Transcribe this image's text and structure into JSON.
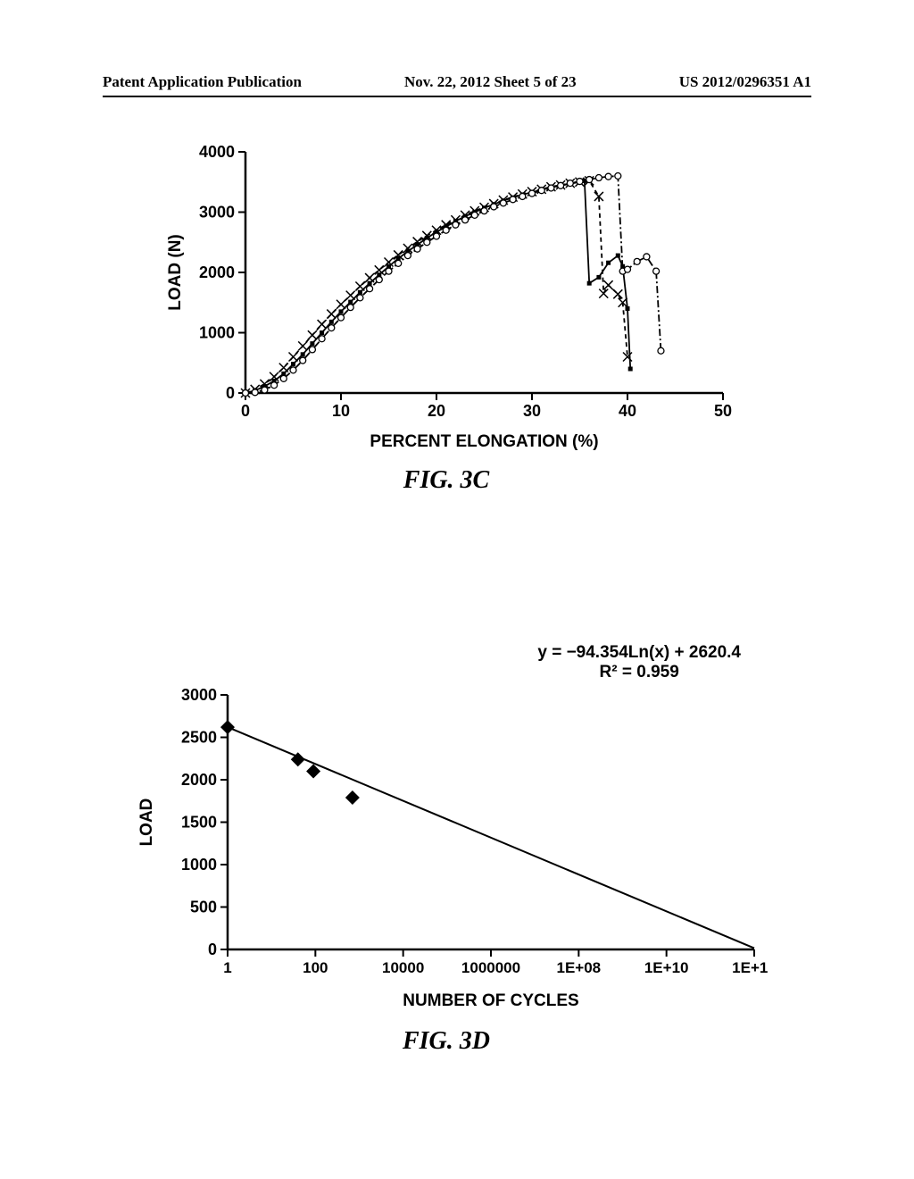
{
  "header": {
    "left": "Patent Application Publication",
    "center": "Nov. 22, 2012  Sheet 5 of 23",
    "right": "US 2012/0296351 A1"
  },
  "chart3c": {
    "type": "line",
    "title": "FIG.   3C",
    "xlabel": "PERCENT ELONGATION (%)",
    "ylabel": "LOAD (N)",
    "xlim": [
      0,
      50
    ],
    "ylim": [
      0,
      4000
    ],
    "xticks": [
      0,
      10,
      20,
      30,
      40,
      50
    ],
    "yticks": [
      0,
      1000,
      2000,
      3000,
      4000
    ],
    "background_color": "#ffffff",
    "line_color": "#000000",
    "marker_size": 5,
    "series": [
      {
        "marker": "square-filled",
        "linestyle": "solid",
        "data": [
          [
            0,
            0
          ],
          [
            1,
            40
          ],
          [
            2,
            110
          ],
          [
            3,
            200
          ],
          [
            4,
            320
          ],
          [
            5,
            480
          ],
          [
            6,
            640
          ],
          [
            7,
            820
          ],
          [
            8,
            1000
          ],
          [
            9,
            1180
          ],
          [
            10,
            1350
          ],
          [
            11,
            1510
          ],
          [
            12,
            1670
          ],
          [
            13,
            1820
          ],
          [
            14,
            1960
          ],
          [
            15,
            2100
          ],
          [
            16,
            2230
          ],
          [
            17,
            2350
          ],
          [
            18,
            2460
          ],
          [
            19,
            2570
          ],
          [
            20,
            2670
          ],
          [
            21,
            2760
          ],
          [
            22,
            2850
          ],
          [
            23,
            2930
          ],
          [
            24,
            3000
          ],
          [
            25,
            3070
          ],
          [
            26,
            3130
          ],
          [
            27,
            3190
          ],
          [
            28,
            3240
          ],
          [
            29,
            3290
          ],
          [
            30,
            3330
          ],
          [
            31,
            3370
          ],
          [
            32,
            3410
          ],
          [
            33,
            3440
          ],
          [
            34,
            3470
          ],
          [
            35,
            3500
          ],
          [
            35.5,
            3520
          ],
          [
            36,
            1820
          ],
          [
            37,
            1920
          ],
          [
            38,
            2160
          ],
          [
            39,
            2280
          ],
          [
            39.5,
            2100
          ],
          [
            40,
            1400
          ],
          [
            40.3,
            400
          ]
        ]
      },
      {
        "marker": "x",
        "linestyle": "dashed",
        "data": [
          [
            0,
            0
          ],
          [
            1,
            60
          ],
          [
            2,
            150
          ],
          [
            3,
            270
          ],
          [
            4,
            420
          ],
          [
            5,
            600
          ],
          [
            6,
            780
          ],
          [
            7,
            960
          ],
          [
            8,
            1140
          ],
          [
            9,
            1310
          ],
          [
            10,
            1470
          ],
          [
            11,
            1620
          ],
          [
            12,
            1770
          ],
          [
            13,
            1910
          ],
          [
            14,
            2040
          ],
          [
            15,
            2170
          ],
          [
            16,
            2290
          ],
          [
            17,
            2400
          ],
          [
            18,
            2510
          ],
          [
            19,
            2610
          ],
          [
            20,
            2700
          ],
          [
            21,
            2790
          ],
          [
            22,
            2870
          ],
          [
            23,
            2950
          ],
          [
            24,
            3020
          ],
          [
            25,
            3080
          ],
          [
            26,
            3140
          ],
          [
            27,
            3200
          ],
          [
            28,
            3250
          ],
          [
            29,
            3300
          ],
          [
            30,
            3340
          ],
          [
            31,
            3380
          ],
          [
            32,
            3420
          ],
          [
            33,
            3450
          ],
          [
            34,
            3480
          ],
          [
            35,
            3500
          ],
          [
            36,
            3520
          ],
          [
            37,
            3260
          ],
          [
            37.5,
            1650
          ],
          [
            38,
            1790
          ],
          [
            39,
            1640
          ],
          [
            39.5,
            1500
          ],
          [
            40,
            600
          ]
        ]
      },
      {
        "marker": "circle-open",
        "linestyle": "dashdot",
        "data": [
          [
            0,
            0
          ],
          [
            1,
            10
          ],
          [
            2,
            50
          ],
          [
            3,
            130
          ],
          [
            4,
            240
          ],
          [
            5,
            380
          ],
          [
            6,
            540
          ],
          [
            7,
            720
          ],
          [
            8,
            900
          ],
          [
            9,
            1080
          ],
          [
            10,
            1250
          ],
          [
            11,
            1420
          ],
          [
            12,
            1580
          ],
          [
            13,
            1730
          ],
          [
            14,
            1880
          ],
          [
            15,
            2020
          ],
          [
            16,
            2150
          ],
          [
            17,
            2280
          ],
          [
            18,
            2390
          ],
          [
            19,
            2500
          ],
          [
            20,
            2600
          ],
          [
            21,
            2700
          ],
          [
            22,
            2790
          ],
          [
            23,
            2870
          ],
          [
            24,
            2950
          ],
          [
            25,
            3020
          ],
          [
            26,
            3090
          ],
          [
            27,
            3150
          ],
          [
            28,
            3210
          ],
          [
            29,
            3260
          ],
          [
            30,
            3310
          ],
          [
            31,
            3360
          ],
          [
            32,
            3400
          ],
          [
            33,
            3440
          ],
          [
            34,
            3480
          ],
          [
            35,
            3510
          ],
          [
            36,
            3540
          ],
          [
            37,
            3570
          ],
          [
            38,
            3590
          ],
          [
            39,
            3600
          ],
          [
            39.5,
            2020
          ],
          [
            40,
            2050
          ],
          [
            41,
            2180
          ],
          [
            42,
            2260
          ],
          [
            43,
            2020
          ],
          [
            43.5,
            700
          ]
        ]
      }
    ]
  },
  "chart3d": {
    "type": "scatter",
    "title": "FIG.   3D",
    "xlabel": "NUMBER OF CYCLES",
    "ylabel": "LOAD",
    "equation_line1": "y = −94.354Ln(x) + 2620.4",
    "equation_line2": "R² = 0.959",
    "xscale": "log",
    "xlim": [
      1,
      1000000000000.0
    ],
    "ylim": [
      0,
      3000
    ],
    "xticks": [
      1,
      100,
      10000,
      1000000,
      100000000.0,
      10000000000.0,
      1000000000000.0
    ],
    "xtick_labels": [
      "1",
      "100",
      "10000",
      "1000000",
      "1E+08",
      "1E+10",
      "1E+12"
    ],
    "yticks": [
      0,
      500,
      1000,
      1500,
      2000,
      2500,
      3000
    ],
    "background_color": "#ffffff",
    "line_color": "#000000",
    "marker": "diamond-filled",
    "marker_color": "#000000",
    "marker_size": 8,
    "data_points": [
      [
        1,
        2620
      ],
      [
        40,
        2240
      ],
      [
        90,
        2100
      ],
      [
        700,
        1790
      ]
    ],
    "fit_line": [
      [
        1,
        2620
      ],
      [
        1000000000000.0,
        15
      ]
    ]
  }
}
